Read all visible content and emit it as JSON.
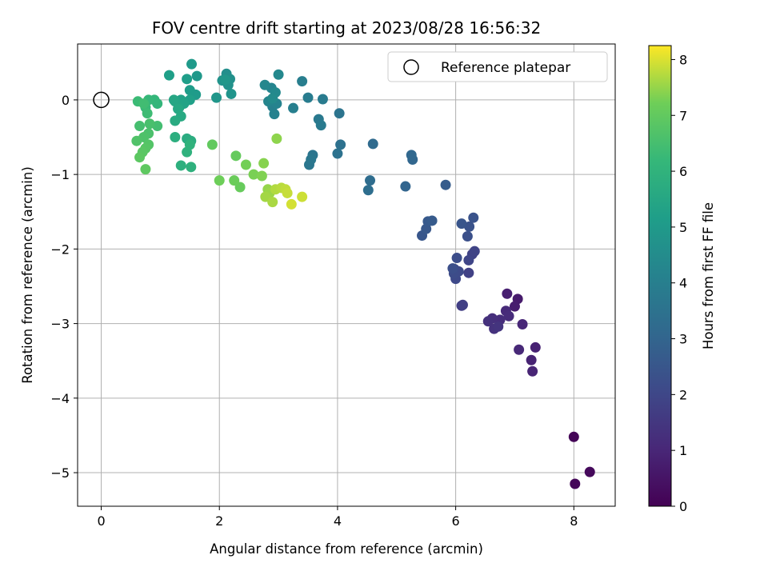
{
  "chart_data": {
    "type": "scatter",
    "title": "FOV centre drift starting at 2023/08/28 16:56:32",
    "xlabel": "Angular distance from reference (arcmin)",
    "ylabel": "Rotation from reference (arcmin)",
    "colorbar_label": "Hours from first FF file",
    "xlim": [
      -0.4,
      8.7
    ],
    "ylim": [
      -5.45,
      0.75
    ],
    "xticks": [
      0,
      2,
      4,
      6,
      8
    ],
    "yticks": [
      0,
      -1,
      -2,
      -3,
      -4,
      -5
    ],
    "colorbar_range": [
      0,
      8.25
    ],
    "colorbar_ticks": [
      0,
      1,
      2,
      3,
      4,
      5,
      6,
      7,
      8
    ],
    "colormap": "viridis",
    "grid": true,
    "legend": {
      "position": "top-right",
      "entries": [
        "Reference platepar"
      ]
    },
    "reference_point": {
      "x": 0,
      "y": 0
    },
    "points": [
      [
        8.0,
        -4.52,
        0.1
      ],
      [
        8.02,
        -5.15,
        0.15
      ],
      [
        8.27,
        -4.99,
        0.2
      ],
      [
        7.05,
        -2.67,
        0.7
      ],
      [
        7.0,
        -2.77,
        0.75
      ],
      [
        6.87,
        -2.6,
        0.8
      ],
      [
        7.35,
        -3.32,
        0.85
      ],
      [
        7.28,
        -3.49,
        0.9
      ],
      [
        7.3,
        -3.64,
        0.95
      ],
      [
        7.13,
        -3.01,
        1.0
      ],
      [
        7.07,
        -3.35,
        1.05
      ],
      [
        6.85,
        -2.83,
        1.1
      ],
      [
        6.9,
        -2.9,
        1.15
      ],
      [
        6.75,
        -2.95,
        1.2
      ],
      [
        6.62,
        -2.93,
        1.25
      ],
      [
        6.55,
        -2.97,
        1.3
      ],
      [
        6.65,
        -3.07,
        1.35
      ],
      [
        6.72,
        -3.04,
        1.4
      ],
      [
        6.1,
        -2.76,
        1.7
      ],
      [
        6.12,
        -2.75,
        1.75
      ],
      [
        6.22,
        -2.32,
        1.8
      ],
      [
        6.28,
        -2.07,
        1.85
      ],
      [
        6.32,
        -2.03,
        1.9
      ],
      [
        6.22,
        -2.15,
        1.95
      ],
      [
        5.98,
        -2.27,
        2.0
      ],
      [
        6.0,
        -2.4,
        2.05
      ],
      [
        6.05,
        -2.3,
        2.1
      ],
      [
        5.97,
        -2.33,
        2.15
      ],
      [
        6.02,
        -2.12,
        2.2
      ],
      [
        5.95,
        -2.26,
        2.25
      ],
      [
        6.2,
        -1.83,
        2.3
      ],
      [
        6.23,
        -1.7,
        2.35
      ],
      [
        6.3,
        -1.58,
        2.4
      ],
      [
        6.1,
        -1.66,
        2.45
      ],
      [
        5.43,
        -1.82,
        2.5
      ],
      [
        5.5,
        -1.73,
        2.55
      ],
      [
        5.53,
        -1.63,
        2.6
      ],
      [
        5.6,
        -1.62,
        2.65
      ],
      [
        5.83,
        -1.14,
        2.7
      ],
      [
        5.15,
        -1.16,
        3.0
      ],
      [
        5.27,
        -0.8,
        3.05
      ],
      [
        5.25,
        -0.74,
        3.1
      ],
      [
        4.6,
        -0.59,
        3.2
      ],
      [
        4.55,
        -1.08,
        3.3
      ],
      [
        4.52,
        -1.21,
        3.35
      ],
      [
        4.05,
        -0.6,
        3.45
      ],
      [
        4.0,
        -0.72,
        3.5
      ],
      [
        4.03,
        -0.18,
        3.55
      ],
      [
        3.58,
        -0.74,
        3.6
      ],
      [
        3.52,
        -0.87,
        3.65
      ],
      [
        3.55,
        -0.8,
        3.7
      ],
      [
        3.68,
        -0.26,
        3.75
      ],
      [
        3.72,
        -0.34,
        3.8
      ],
      [
        3.75,
        0.01,
        3.85
      ],
      [
        3.5,
        0.03,
        3.9
      ],
      [
        3.4,
        0.25,
        3.95
      ],
      [
        3.25,
        -0.11,
        4.0
      ],
      [
        2.9,
        -0.09,
        4.05
      ],
      [
        2.93,
        -0.19,
        4.1
      ],
      [
        2.97,
        -0.05,
        4.15
      ],
      [
        2.88,
        0.16,
        4.2
      ],
      [
        2.83,
        -0.02,
        4.25
      ],
      [
        2.77,
        0.2,
        4.3
      ],
      [
        3.0,
        0.34,
        4.35
      ],
      [
        2.95,
        0.1,
        4.4
      ],
      [
        2.9,
        0.02,
        4.45
      ],
      [
        2.12,
        0.35,
        4.6
      ],
      [
        2.18,
        0.28,
        4.65
      ],
      [
        2.15,
        0.2,
        4.7
      ],
      [
        2.05,
        0.26,
        4.75
      ],
      [
        2.2,
        0.08,
        4.8
      ],
      [
        1.95,
        0.03,
        4.85
      ],
      [
        2.1,
        0.27,
        4.9
      ],
      [
        1.62,
        0.32,
        4.95
      ],
      [
        1.53,
        0.48,
        5.0
      ],
      [
        1.6,
        0.07,
        5.05
      ],
      [
        1.5,
        0.13,
        5.1
      ],
      [
        1.45,
        0.28,
        5.15
      ],
      [
        1.15,
        0.33,
        5.2
      ],
      [
        1.5,
        0.0,
        5.25
      ],
      [
        1.35,
        0.0,
        5.3
      ],
      [
        1.4,
        -0.05,
        5.35
      ],
      [
        1.32,
        -0.1,
        5.4
      ],
      [
        1.25,
        -0.02,
        5.45
      ],
      [
        1.23,
        0.0,
        5.5
      ],
      [
        1.3,
        -0.12,
        5.55
      ],
      [
        1.35,
        -0.22,
        5.6
      ],
      [
        1.25,
        -0.28,
        5.65
      ],
      [
        1.45,
        -0.52,
        5.7
      ],
      [
        1.52,
        -0.55,
        5.75
      ],
      [
        1.25,
        -0.5,
        5.8
      ],
      [
        1.35,
        -0.88,
        5.85
      ],
      [
        1.52,
        -0.9,
        5.9
      ],
      [
        1.45,
        -0.7,
        5.95
      ],
      [
        1.5,
        -0.6,
        6.0
      ],
      [
        0.95,
        -0.05,
        6.1
      ],
      [
        0.9,
        0.0,
        6.15
      ],
      [
        0.8,
        0.0,
        6.2
      ],
      [
        0.75,
        -0.1,
        6.25
      ],
      [
        0.62,
        -0.02,
        6.3
      ],
      [
        0.78,
        -0.18,
        6.35
      ],
      [
        0.72,
        -0.05,
        6.4
      ],
      [
        0.95,
        -0.35,
        6.45
      ],
      [
        0.65,
        -0.35,
        6.5
      ],
      [
        0.82,
        -0.32,
        6.55
      ],
      [
        0.8,
        -0.45,
        6.6
      ],
      [
        0.72,
        -0.5,
        6.65
      ],
      [
        0.6,
        -0.55,
        6.7
      ],
      [
        0.8,
        -0.6,
        6.75
      ],
      [
        0.75,
        -0.65,
        6.8
      ],
      [
        0.7,
        -0.7,
        6.85
      ],
      [
        0.65,
        -0.77,
        6.9
      ],
      [
        0.75,
        -0.93,
        6.95
      ],
      [
        1.88,
        -0.6,
        7.0
      ],
      [
        2.28,
        -0.75,
        7.05
      ],
      [
        2.35,
        -1.17,
        7.1
      ],
      [
        2.25,
        -1.08,
        7.15
      ],
      [
        2.0,
        -1.08,
        7.2
      ],
      [
        2.45,
        -0.87,
        7.25
      ],
      [
        2.58,
        -1.0,
        7.3
      ],
      [
        2.72,
        -1.02,
        7.35
      ],
      [
        2.75,
        -0.85,
        7.4
      ],
      [
        2.97,
        -0.52,
        7.45
      ],
      [
        2.82,
        -1.2,
        7.5
      ],
      [
        2.85,
        -1.25,
        7.55
      ],
      [
        2.78,
        -1.3,
        7.6
      ],
      [
        2.9,
        -1.37,
        7.65
      ],
      [
        2.95,
        -1.2,
        7.7
      ],
      [
        3.05,
        -1.18,
        7.75
      ],
      [
        3.12,
        -1.2,
        7.8
      ],
      [
        3.15,
        -1.25,
        7.85
      ],
      [
        3.4,
        -1.3,
        7.9
      ],
      [
        3.22,
        -1.4,
        7.95
      ]
    ]
  }
}
